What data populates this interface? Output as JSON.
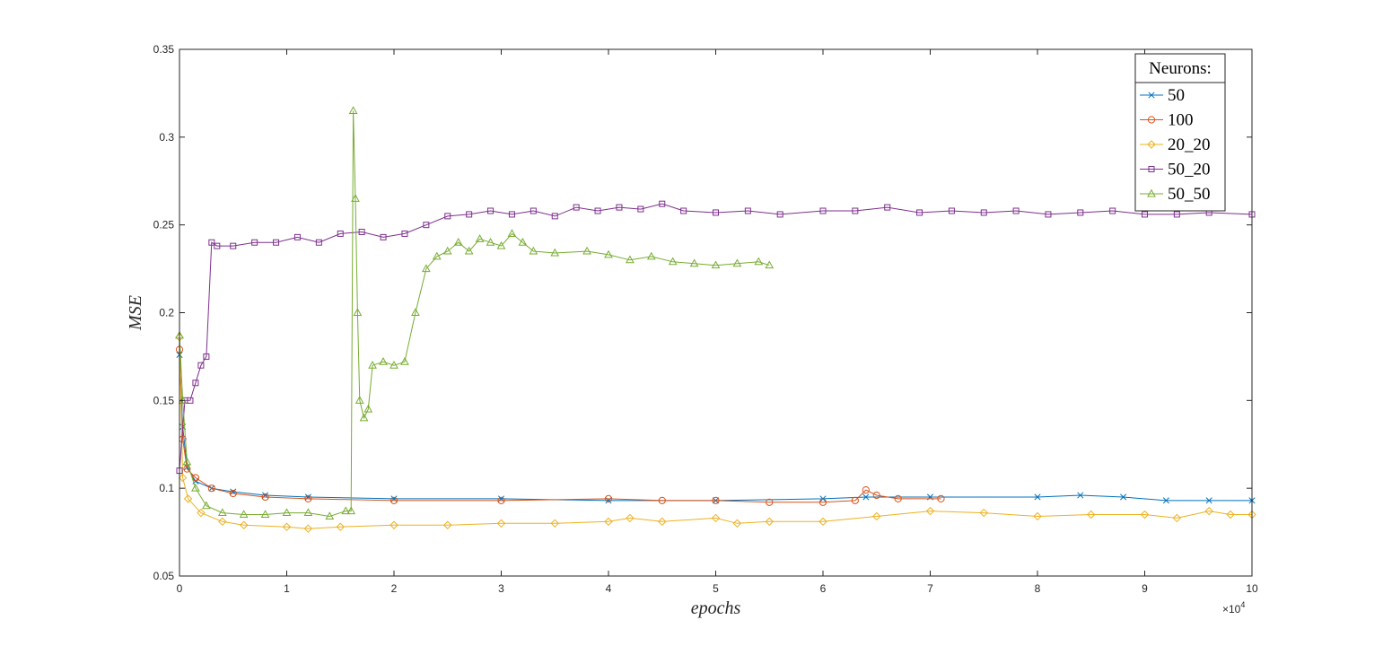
{
  "chart_data": {
    "type": "line",
    "xlabel": "epochs",
    "ylabel": "MSE",
    "x_multiplier_label": "×10",
    "x_multiplier_exp": "4",
    "xlim": [
      0,
      100000
    ],
    "ylim": [
      0.05,
      0.35
    ],
    "xticks": [
      0,
      10000,
      20000,
      30000,
      40000,
      50000,
      60000,
      70000,
      80000,
      90000,
      100000
    ],
    "xtick_labels": [
      "0",
      "1",
      "2",
      "3",
      "4",
      "5",
      "6",
      "7",
      "8",
      "9",
      "10"
    ],
    "yticks": [
      0.05,
      0.1,
      0.15,
      0.2,
      0.25,
      0.3,
      0.35
    ],
    "ytick_labels": [
      "0.05",
      "0.1",
      "0.15",
      "0.2",
      "0.25",
      "0.3",
      "0.35"
    ],
    "grid": false,
    "legend": {
      "title": "Neurons:",
      "position": "top-right"
    },
    "series": [
      {
        "name": "50",
        "color": "#0072BD",
        "marker": "x",
        "points": [
          [
            0,
            0.176
          ],
          [
            300,
            0.135
          ],
          [
            700,
            0.112
          ],
          [
            1500,
            0.104
          ],
          [
            3000,
            0.1
          ],
          [
            5000,
            0.098
          ],
          [
            8000,
            0.096
          ],
          [
            12000,
            0.095
          ],
          [
            20000,
            0.094
          ],
          [
            30000,
            0.094
          ],
          [
            40000,
            0.093
          ],
          [
            50000,
            0.093
          ],
          [
            60000,
            0.094
          ],
          [
            64000,
            0.095
          ],
          [
            70000,
            0.095
          ],
          [
            80000,
            0.095
          ],
          [
            84000,
            0.096
          ],
          [
            88000,
            0.095
          ],
          [
            92000,
            0.093
          ],
          [
            96000,
            0.093
          ],
          [
            100000,
            0.093
          ]
        ]
      },
      {
        "name": "100",
        "color": "#D95319",
        "marker": "o",
        "points": [
          [
            0,
            0.179
          ],
          [
            300,
            0.128
          ],
          [
            700,
            0.111
          ],
          [
            1500,
            0.106
          ],
          [
            3000,
            0.1
          ],
          [
            5000,
            0.097
          ],
          [
            8000,
            0.095
          ],
          [
            12000,
            0.094
          ],
          [
            20000,
            0.093
          ],
          [
            30000,
            0.093
          ],
          [
            40000,
            0.094
          ],
          [
            45000,
            0.093
          ],
          [
            50000,
            0.093
          ],
          [
            55000,
            0.092
          ],
          [
            60000,
            0.092
          ],
          [
            63000,
            0.093
          ],
          [
            64000,
            0.099
          ],
          [
            65000,
            0.096
          ],
          [
            67000,
            0.094
          ],
          [
            71000,
            0.094
          ]
        ]
      },
      {
        "name": "20_20",
        "color": "#EDB120",
        "marker": "diamond",
        "points": [
          [
            0,
            0.186
          ],
          [
            300,
            0.106
          ],
          [
            800,
            0.094
          ],
          [
            2000,
            0.086
          ],
          [
            4000,
            0.081
          ],
          [
            6000,
            0.079
          ],
          [
            10000,
            0.078
          ],
          [
            12000,
            0.077
          ],
          [
            15000,
            0.078
          ],
          [
            20000,
            0.079
          ],
          [
            25000,
            0.079
          ],
          [
            30000,
            0.08
          ],
          [
            35000,
            0.08
          ],
          [
            40000,
            0.081
          ],
          [
            42000,
            0.083
          ],
          [
            45000,
            0.081
          ],
          [
            50000,
            0.083
          ],
          [
            52000,
            0.08
          ],
          [
            55000,
            0.081
          ],
          [
            60000,
            0.081
          ],
          [
            65000,
            0.084
          ],
          [
            70000,
            0.087
          ],
          [
            75000,
            0.086
          ],
          [
            80000,
            0.084
          ],
          [
            85000,
            0.085
          ],
          [
            90000,
            0.085
          ],
          [
            93000,
            0.083
          ],
          [
            96000,
            0.087
          ],
          [
            98000,
            0.085
          ],
          [
            100000,
            0.085
          ]
        ]
      },
      {
        "name": "50_20",
        "color": "#7E2F8E",
        "marker": "square",
        "points": [
          [
            0,
            0.11
          ],
          [
            500,
            0.15
          ],
          [
            1000,
            0.15
          ],
          [
            1500,
            0.16
          ],
          [
            2000,
            0.17
          ],
          [
            2500,
            0.175
          ],
          [
            3000,
            0.24
          ],
          [
            3500,
            0.238
          ],
          [
            5000,
            0.238
          ],
          [
            7000,
            0.24
          ],
          [
            9000,
            0.24
          ],
          [
            11000,
            0.243
          ],
          [
            13000,
            0.24
          ],
          [
            15000,
            0.245
          ],
          [
            17000,
            0.246
          ],
          [
            19000,
            0.243
          ],
          [
            21000,
            0.245
          ],
          [
            23000,
            0.25
          ],
          [
            25000,
            0.255
          ],
          [
            27000,
            0.256
          ],
          [
            29000,
            0.258
          ],
          [
            31000,
            0.256
          ],
          [
            33000,
            0.258
          ],
          [
            35000,
            0.255
          ],
          [
            37000,
            0.26
          ],
          [
            39000,
            0.258
          ],
          [
            41000,
            0.26
          ],
          [
            43000,
            0.259
          ],
          [
            45000,
            0.262
          ],
          [
            47000,
            0.258
          ],
          [
            50000,
            0.257
          ],
          [
            53000,
            0.258
          ],
          [
            56000,
            0.256
          ],
          [
            60000,
            0.258
          ],
          [
            63000,
            0.258
          ],
          [
            66000,
            0.26
          ],
          [
            69000,
            0.257
          ],
          [
            72000,
            0.258
          ],
          [
            75000,
            0.257
          ],
          [
            78000,
            0.258
          ],
          [
            81000,
            0.256
          ],
          [
            84000,
            0.257
          ],
          [
            87000,
            0.258
          ],
          [
            90000,
            0.256
          ],
          [
            93000,
            0.256
          ],
          [
            96000,
            0.257
          ],
          [
            100000,
            0.256
          ]
        ]
      },
      {
        "name": "50_50",
        "color": "#77AC30",
        "marker": "triangle",
        "points": [
          [
            0,
            0.187
          ],
          [
            300,
            0.15
          ],
          [
            700,
            0.115
          ],
          [
            1500,
            0.1
          ],
          [
            2500,
            0.09
          ],
          [
            4000,
            0.086
          ],
          [
            6000,
            0.085
          ],
          [
            8000,
            0.085
          ],
          [
            10000,
            0.086
          ],
          [
            12000,
            0.086
          ],
          [
            14000,
            0.084
          ],
          [
            15500,
            0.087
          ],
          [
            16000,
            0.087
          ],
          [
            16200,
            0.315
          ],
          [
            16400,
            0.265
          ],
          [
            16600,
            0.2
          ],
          [
            16800,
            0.15
          ],
          [
            17200,
            0.14
          ],
          [
            17600,
            0.145
          ],
          [
            18000,
            0.17
          ],
          [
            19000,
            0.172
          ],
          [
            20000,
            0.17
          ],
          [
            21000,
            0.172
          ],
          [
            22000,
            0.2
          ],
          [
            23000,
            0.225
          ],
          [
            24000,
            0.232
          ],
          [
            25000,
            0.235
          ],
          [
            26000,
            0.24
          ],
          [
            27000,
            0.235
          ],
          [
            28000,
            0.242
          ],
          [
            29000,
            0.24
          ],
          [
            30000,
            0.238
          ],
          [
            31000,
            0.245
          ],
          [
            32000,
            0.24
          ],
          [
            33000,
            0.235
          ],
          [
            35000,
            0.234
          ],
          [
            38000,
            0.235
          ],
          [
            40000,
            0.233
          ],
          [
            42000,
            0.23
          ],
          [
            44000,
            0.232
          ],
          [
            46000,
            0.229
          ],
          [
            48000,
            0.228
          ],
          [
            50000,
            0.227
          ],
          [
            52000,
            0.228
          ],
          [
            54000,
            0.229
          ],
          [
            55000,
            0.227
          ]
        ]
      }
    ]
  }
}
